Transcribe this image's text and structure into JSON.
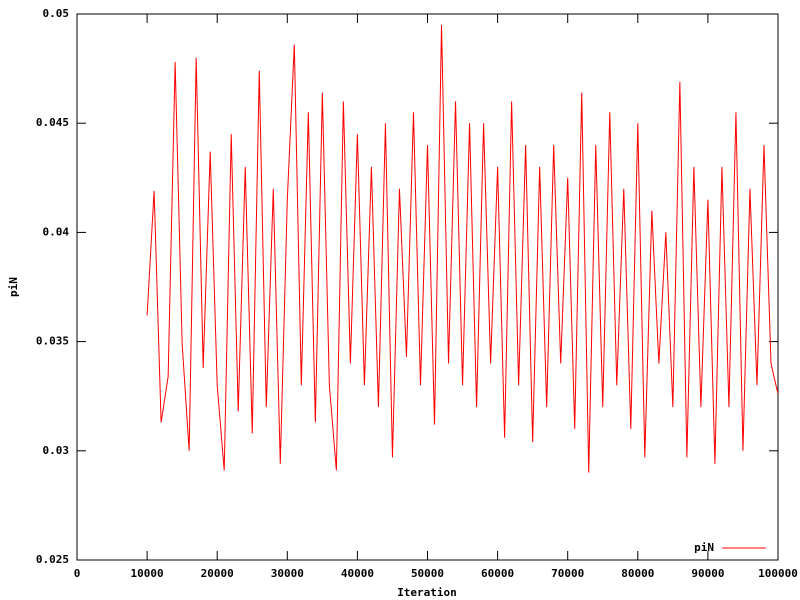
{
  "chart_data": {
    "type": "line",
    "xlabel": "Iteration",
    "ylabel": "piN",
    "x": [
      10000,
      11000,
      12000,
      13000,
      14000,
      15000,
      16000,
      17000,
      18000,
      19000,
      20000,
      21000,
      22000,
      23000,
      24000,
      25000,
      26000,
      27000,
      28000,
      29000,
      30000,
      31000,
      32000,
      33000,
      34000,
      35000,
      36000,
      37000,
      38000,
      39000,
      40000,
      41000,
      42000,
      43000,
      44000,
      45000,
      46000,
      47000,
      48000,
      49000,
      50000,
      51000,
      52000,
      53000,
      54000,
      55000,
      56000,
      57000,
      58000,
      59000,
      60000,
      61000,
      62000,
      63000,
      64000,
      65000,
      66000,
      67000,
      68000,
      69000,
      70000,
      71000,
      72000,
      73000,
      74000,
      75000,
      76000,
      77000,
      78000,
      79000,
      80000,
      81000,
      82000,
      83000,
      84000,
      85000,
      86000,
      87000,
      88000,
      89000,
      90000,
      91000,
      92000,
      93000,
      94000,
      95000,
      96000,
      97000,
      98000,
      99000,
      100000
    ],
    "series": [
      {
        "name": "piN",
        "color": "#ff0000",
        "values": [
          0.0362,
          0.0419,
          0.0313,
          0.0334,
          0.0478,
          0.0349,
          0.03,
          0.048,
          0.0338,
          0.0437,
          0.033,
          0.0291,
          0.0445,
          0.0318,
          0.043,
          0.0308,
          0.0474,
          0.032,
          0.042,
          0.0294,
          0.0415,
          0.0486,
          0.033,
          0.0455,
          0.0313,
          0.0464,
          0.033,
          0.0291,
          0.046,
          0.034,
          0.0445,
          0.033,
          0.043,
          0.032,
          0.045,
          0.0297,
          0.042,
          0.0343,
          0.0455,
          0.033,
          0.044,
          0.0312,
          0.0495,
          0.034,
          0.046,
          0.033,
          0.045,
          0.032,
          0.045,
          0.034,
          0.043,
          0.0306,
          0.046,
          0.033,
          0.044,
          0.0304,
          0.043,
          0.032,
          0.044,
          0.034,
          0.0425,
          0.031,
          0.0464,
          0.029,
          0.044,
          0.032,
          0.0455,
          0.033,
          0.042,
          0.031,
          0.045,
          0.0297,
          0.041,
          0.034,
          0.04,
          0.032,
          0.0469,
          0.0297,
          0.043,
          0.032,
          0.0415,
          0.0294,
          0.043,
          0.032,
          0.0455,
          0.03,
          0.042,
          0.033,
          0.044,
          0.034,
          0.0326
        ]
      }
    ],
    "xlim": [
      0,
      100000
    ],
    "ylim": [
      0.025,
      0.05
    ],
    "xticks": [
      0,
      10000,
      20000,
      30000,
      40000,
      50000,
      60000,
      70000,
      80000,
      90000,
      100000
    ],
    "yticks": [
      0.025,
      0.03,
      0.035,
      0.04,
      0.045,
      0.05
    ],
    "legend": "bottom-right",
    "grid": false
  }
}
